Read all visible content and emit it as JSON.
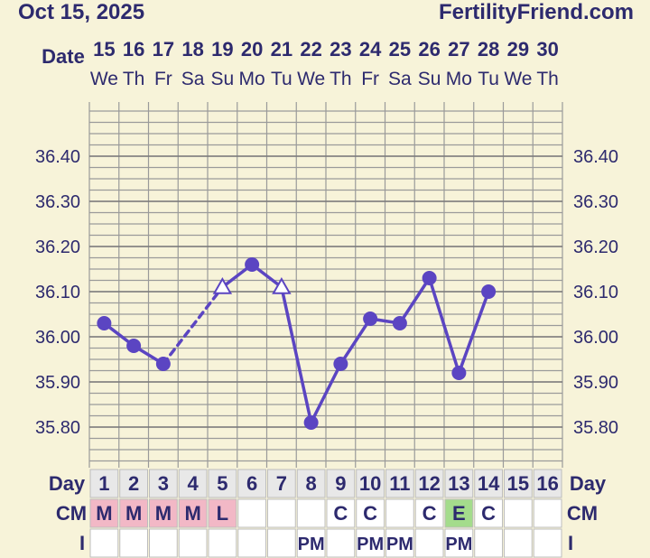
{
  "header": {
    "date": "Oct 15, 2025",
    "brand": "FertilityFriend.com"
  },
  "row_labels": {
    "date": "Date",
    "day": "Day",
    "cm": "CM",
    "intercourse": "I"
  },
  "columns": [
    {
      "date": "15",
      "weekday": "We",
      "day": "1",
      "cm": "M",
      "i": ""
    },
    {
      "date": "16",
      "weekday": "Th",
      "day": "2",
      "cm": "M",
      "i": ""
    },
    {
      "date": "17",
      "weekday": "Fr",
      "day": "3",
      "cm": "M",
      "i": ""
    },
    {
      "date": "18",
      "weekday": "Sa",
      "day": "4",
      "cm": "M",
      "i": ""
    },
    {
      "date": "19",
      "weekday": "Su",
      "day": "5",
      "cm": "L",
      "i": ""
    },
    {
      "date": "20",
      "weekday": "Mo",
      "day": "6",
      "cm": "",
      "i": ""
    },
    {
      "date": "21",
      "weekday": "Tu",
      "day": "7",
      "cm": "",
      "i": ""
    },
    {
      "date": "22",
      "weekday": "We",
      "day": "8",
      "cm": "",
      "i": "PM"
    },
    {
      "date": "23",
      "weekday": "Th",
      "day": "9",
      "cm": "C",
      "i": ""
    },
    {
      "date": "24",
      "weekday": "Fr",
      "day": "10",
      "cm": "C",
      "i": "PM"
    },
    {
      "date": "25",
      "weekday": "Sa",
      "day": "11",
      "cm": "",
      "i": "PM"
    },
    {
      "date": "26",
      "weekday": "Su",
      "day": "12",
      "cm": "C",
      "i": ""
    },
    {
      "date": "27",
      "weekday": "Mo",
      "day": "13",
      "cm": "E",
      "i": "PM"
    },
    {
      "date": "28",
      "weekday": "Tu",
      "day": "14",
      "cm": "C",
      "i": ""
    },
    {
      "date": "29",
      "weekday": "We",
      "day": "15",
      "cm": "",
      "i": ""
    },
    {
      "date": "30",
      "weekday": "Th",
      "day": "16",
      "cm": "",
      "i": ""
    }
  ],
  "colors": {
    "background": "#f7f3d9",
    "text": "#2d2a6e",
    "line": "#5b45c2",
    "grid": "#9a9a9a",
    "cm_menstrual": "#f2b8c6",
    "cm_egg_white": "#a4dc8c",
    "day_row_bg": "#e8e8e8",
    "cell_bg": "#ffffff"
  },
  "chart_data": {
    "type": "line",
    "x_unit": "cycle day",
    "y_unit": "temperature (°C)",
    "y_ticks": [
      "36.40",
      "36.30",
      "36.20",
      "36.10",
      "36.00",
      "35.90",
      "35.80"
    ],
    "ylim": [
      35.71,
      36.52
    ],
    "grid": true,
    "points": [
      {
        "day": 1,
        "temp": 36.03,
        "marker": "circle"
      },
      {
        "day": 2,
        "temp": 35.98,
        "marker": "circle"
      },
      {
        "day": 3,
        "temp": 35.94,
        "marker": "circle"
      },
      {
        "day": 5,
        "temp": 36.11,
        "marker": "triangle"
      },
      {
        "day": 6,
        "temp": 36.16,
        "marker": "circle"
      },
      {
        "day": 7,
        "temp": 36.11,
        "marker": "triangle"
      },
      {
        "day": 8,
        "temp": 35.81,
        "marker": "circle"
      },
      {
        "day": 9,
        "temp": 35.94,
        "marker": "circle"
      },
      {
        "day": 10,
        "temp": 36.04,
        "marker": "circle"
      },
      {
        "day": 11,
        "temp": 36.03,
        "marker": "circle"
      },
      {
        "day": 12,
        "temp": 36.13,
        "marker": "circle"
      },
      {
        "day": 13,
        "temp": 35.92,
        "marker": "circle"
      },
      {
        "day": 14,
        "temp": 36.1,
        "marker": "circle"
      }
    ],
    "dashed_segments": [
      [
        3,
        5
      ]
    ]
  }
}
